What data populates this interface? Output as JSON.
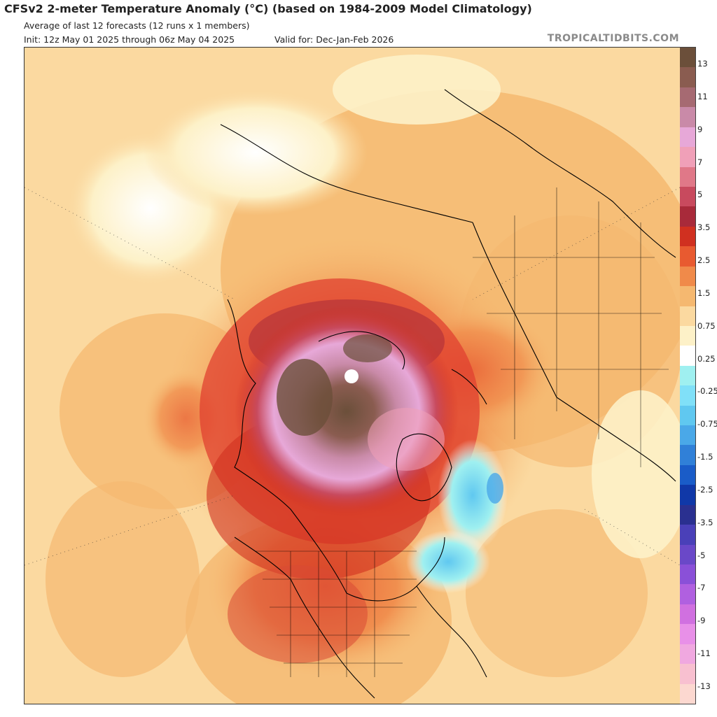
{
  "header": {
    "title": "CFSv2 2-meter Temperature Anomaly (°C) (based on 1984-2009 Model Climatology)",
    "subtitle": "Average of last 12 forecasts (12 runs x 1 members)",
    "init": "Init: 12z May 01 2025 through 06z May 04 2025",
    "valid": "Valid for: Dec-Jan-Feb 2026",
    "brand": "TROPICALTIDBITS.COM"
  },
  "colorbar": {
    "blocks": [
      "#6b4f3a",
      "#8a5c50",
      "#a66a72",
      "#c98aa8",
      "#e7a8d8",
      "#f0a0b8",
      "#e07888",
      "#c84a5e",
      "#a82a3a",
      "#d03020",
      "#e85a30",
      "#f08a4a",
      "#f5b870",
      "#fbd9a0",
      "#fdf1c8",
      "#ffffff",
      "#9ff0f0",
      "#80e0f8",
      "#60c8f0",
      "#4aa8e8",
      "#3080d8",
      "#1a5cc8",
      "#1038a8",
      "#2a3090",
      "#4a40b8",
      "#6a48c8",
      "#8a50d8",
      "#b060e0",
      "#d070e0",
      "#e890e8",
      "#f0a8e0",
      "#f8c0d0",
      "#fcd8d0"
    ],
    "labels": [
      "13",
      "11",
      "9",
      "7",
      "5",
      "3.5",
      "2.5",
      "1.5",
      "0.75",
      "0.25",
      "-0.25",
      "-0.75",
      "-1.5",
      "-2.5",
      "-3.5",
      "-5",
      "-7",
      "-9",
      "-11",
      "-13"
    ],
    "label_positions": [
      1,
      3,
      5,
      7,
      9,
      11,
      12,
      14,
      16,
      18,
      20,
      22,
      24,
      26,
      27,
      29,
      31,
      33,
      35,
      37
    ]
  }
}
